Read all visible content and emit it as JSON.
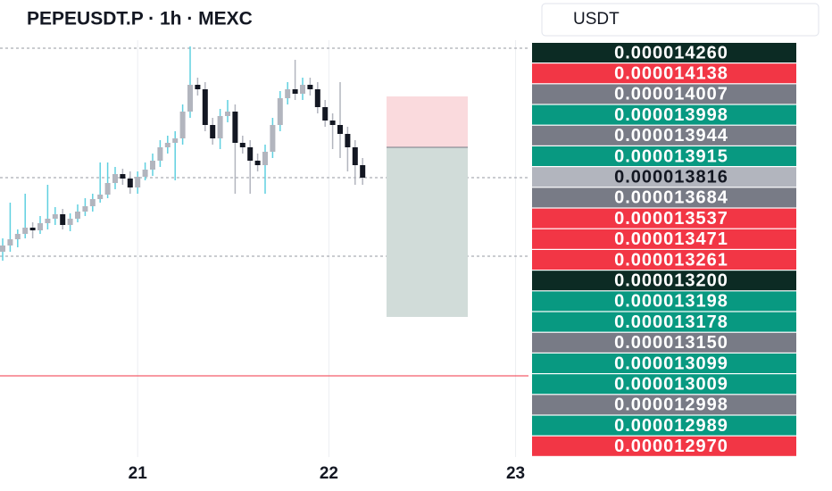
{
  "chart_data": {
    "type": "candlestick",
    "title": "PEPEUSDT.P · 1h · MEXC",
    "currency": "USDT",
    "up_color": "#b2b5be",
    "up_wick": "#5fd0e0",
    "down_color": "#131722",
    "down_wick": "#b2b5be",
    "ylim": [
      1.3134e-05,
      1.4214e-05
    ],
    "candles": {
      "open": [
        1.365e-05,
        1.3664e-05,
        1.3678e-05,
        1.369e-05,
        1.3704e-05,
        1.3698e-05,
        1.3714e-05,
        1.3724e-05,
        1.3734e-05,
        1.371e-05,
        1.3724e-05,
        1.374e-05,
        1.3752e-05,
        1.3768e-05,
        1.3778e-05,
        1.3804e-05,
        1.3824e-05,
        1.3814e-05,
        1.3794e-05,
        1.3818e-05,
        1.3834e-05,
        1.3854e-05,
        1.3884e-05,
        1.3894e-05,
        1.3904e-05,
        1.3964e-05,
        1.4024e-05,
        1.4014e-05,
        1.3934e-05,
        1.3904e-05,
        1.3954e-05,
        1.3964e-05,
        1.3894e-05,
        1.3884e-05,
        1.3854e-05,
        1.3844e-05,
        1.3874e-05,
        1.3934e-05,
        1.3994e-05,
        1.4014e-05,
        1.4004e-05,
        1.4024e-05,
        1.4014e-05,
        1.3974e-05,
        1.3944e-05,
        1.3934e-05,
        1.3914e-05,
        1.3884e-05,
        1.3844e-05
      ],
      "high": [
        1.368e-05,
        1.376e-05,
        1.37e-05,
        1.378e-05,
        1.3716e-05,
        1.373e-05,
        1.38e-05,
        1.375e-05,
        1.3746e-05,
        1.3736e-05,
        1.3756e-05,
        1.377e-05,
        1.378e-05,
        1.385e-05,
        1.385e-05,
        1.384e-05,
        1.3836e-05,
        1.383e-05,
        1.383e-05,
        1.385e-05,
        1.387e-05,
        1.39e-05,
        1.391e-05,
        1.392e-05,
        1.398e-05,
        1.411e-05,
        1.404e-05,
        1.403e-05,
        1.395e-05,
        1.397e-05,
        1.399e-05,
        1.398e-05,
        1.391e-05,
        1.39e-05,
        1.387e-05,
        1.389e-05,
        1.395e-05,
        1.401e-05,
        1.403e-05,
        1.408e-05,
        1.404e-05,
        1.404e-05,
        1.403e-05,
        1.399e-05,
        1.396e-05,
        1.403e-05,
        1.393e-05,
        1.39e-05,
        1.386e-05
      ],
      "low": [
        1.363e-05,
        1.365e-05,
        1.366e-05,
        1.368e-05,
        1.368e-05,
        1.369e-05,
        1.37e-05,
        1.371e-05,
        1.37e-05,
        1.3696e-05,
        1.3716e-05,
        1.373e-05,
        1.374e-05,
        1.376e-05,
        1.377e-05,
        1.379e-05,
        1.38e-05,
        1.378e-05,
        1.378e-05,
        1.381e-05,
        1.382e-05,
        1.384e-05,
        1.387e-05,
        1.381e-05,
        1.389e-05,
        1.395e-05,
        1.4e-05,
        1.392e-05,
        1.389e-05,
        1.388e-05,
        1.394e-05,
        1.378e-05,
        1.387e-05,
        1.378e-05,
        1.383e-05,
        1.378e-05,
        1.386e-05,
        1.392e-05,
        1.398e-05,
        1.399e-05,
        1.399e-05,
        1.4e-05,
        1.396e-05,
        1.393e-05,
        1.388e-05,
        1.386e-05,
        1.383e-05,
        1.38e-05,
        1.38e-05
      ],
      "close": [
        1.3664e-05,
        1.3678e-05,
        1.369e-05,
        1.3704e-05,
        1.3698e-05,
        1.3714e-05,
        1.3724e-05,
        1.3734e-05,
        1.371e-05,
        1.3724e-05,
        1.374e-05,
        1.3752e-05,
        1.3768e-05,
        1.3778e-05,
        1.3804e-05,
        1.3824e-05,
        1.3814e-05,
        1.3794e-05,
        1.3818e-05,
        1.3834e-05,
        1.3854e-05,
        1.3884e-05,
        1.3894e-05,
        1.3904e-05,
        1.3964e-05,
        1.4024e-05,
        1.4014e-05,
        1.3934e-05,
        1.3904e-05,
        1.3954e-05,
        1.3964e-05,
        1.3894e-05,
        1.3884e-05,
        1.3854e-05,
        1.3844e-05,
        1.3874e-05,
        1.3934e-05,
        1.3994e-05,
        1.4014e-05,
        1.4004e-05,
        1.4024e-05,
        1.4014e-05,
        1.3974e-05,
        1.3944e-05,
        1.3934e-05,
        1.3914e-05,
        1.3884e-05,
        1.3844e-05,
        1.3816e-05
      ]
    },
    "time_labels": [
      {
        "label": "21",
        "at": 18
      },
      {
        "label": "22",
        "at": 43.5
      },
      {
        "label": "23",
        "at": 68.4
      }
    ],
    "dashed_levels": [
      1.4106e-05,
      1.3816e-05,
      1.364e-05
    ],
    "alert_level": 1.3372e-05,
    "position": {
      "stop": 1.3998e-05,
      "entry": 1.3884e-05,
      "target": 1.3504e-05
    },
    "price_labels": [
      {
        "text": "0.000014260",
        "color": "#0c2b24"
      },
      {
        "text": "0.000014138",
        "color": "#f23645"
      },
      {
        "text": "0.000014007",
        "color": "#787b86"
      },
      {
        "text": "0.000013998",
        "color": "#089981"
      },
      {
        "text": "0.000013944",
        "color": "#787b86"
      },
      {
        "text": "0.000013915",
        "color": "#089981"
      },
      {
        "text": "0.000013816",
        "color": "#b2b5be"
      },
      {
        "text": "0.000013684",
        "color": "#787b86"
      },
      {
        "text": "0.000013537",
        "color": "#f23645"
      },
      {
        "text": "0.000013471",
        "color": "#f23645"
      },
      {
        "text": "0.000013261",
        "color": "#f23645"
      },
      {
        "text": "0.000013200",
        "color": "#0c2b24"
      },
      {
        "text": "0.000013198",
        "color": "#089981"
      },
      {
        "text": "0.000013178",
        "color": "#089981"
      },
      {
        "text": "0.000013150",
        "color": "#787b86"
      },
      {
        "text": "0.000013099",
        "color": "#089981"
      },
      {
        "text": "0.000013009",
        "color": "#089981"
      },
      {
        "text": "0.000012998",
        "color": "#787b86"
      },
      {
        "text": "0.000012989",
        "color": "#089981"
      },
      {
        "text": "0.000012970",
        "color": "#f23645"
      }
    ]
  }
}
